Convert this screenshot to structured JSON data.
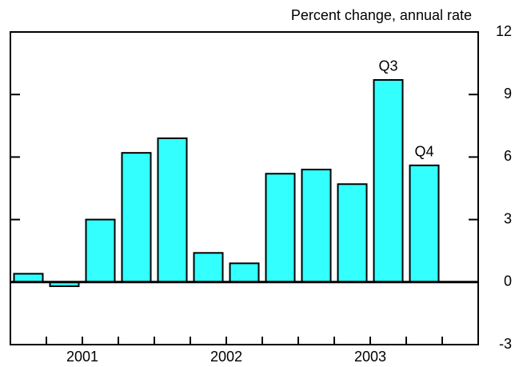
{
  "chart_data": {
    "type": "bar",
    "y_axis_label": "Percent change, annual rate",
    "categories": [
      null,
      null,
      null,
      null,
      null,
      null,
      null,
      null,
      null,
      null,
      null,
      null,
      null
    ],
    "x_groups": [
      "2001",
      "2002",
      "2003"
    ],
    "values": [
      0.4,
      -0.2,
      3.0,
      6.2,
      6.9,
      1.4,
      0.9,
      5.2,
      5.4,
      4.7,
      9.7,
      5.6,
      null
    ],
    "color": "#33ffff",
    "annotations": [
      {
        "text": "Q3",
        "index": 10
      },
      {
        "text": "Q4",
        "index": 11
      }
    ],
    "ylim": [
      -3,
      12
    ],
    "yticks": [
      -3,
      0,
      3,
      6,
      9,
      12
    ]
  }
}
